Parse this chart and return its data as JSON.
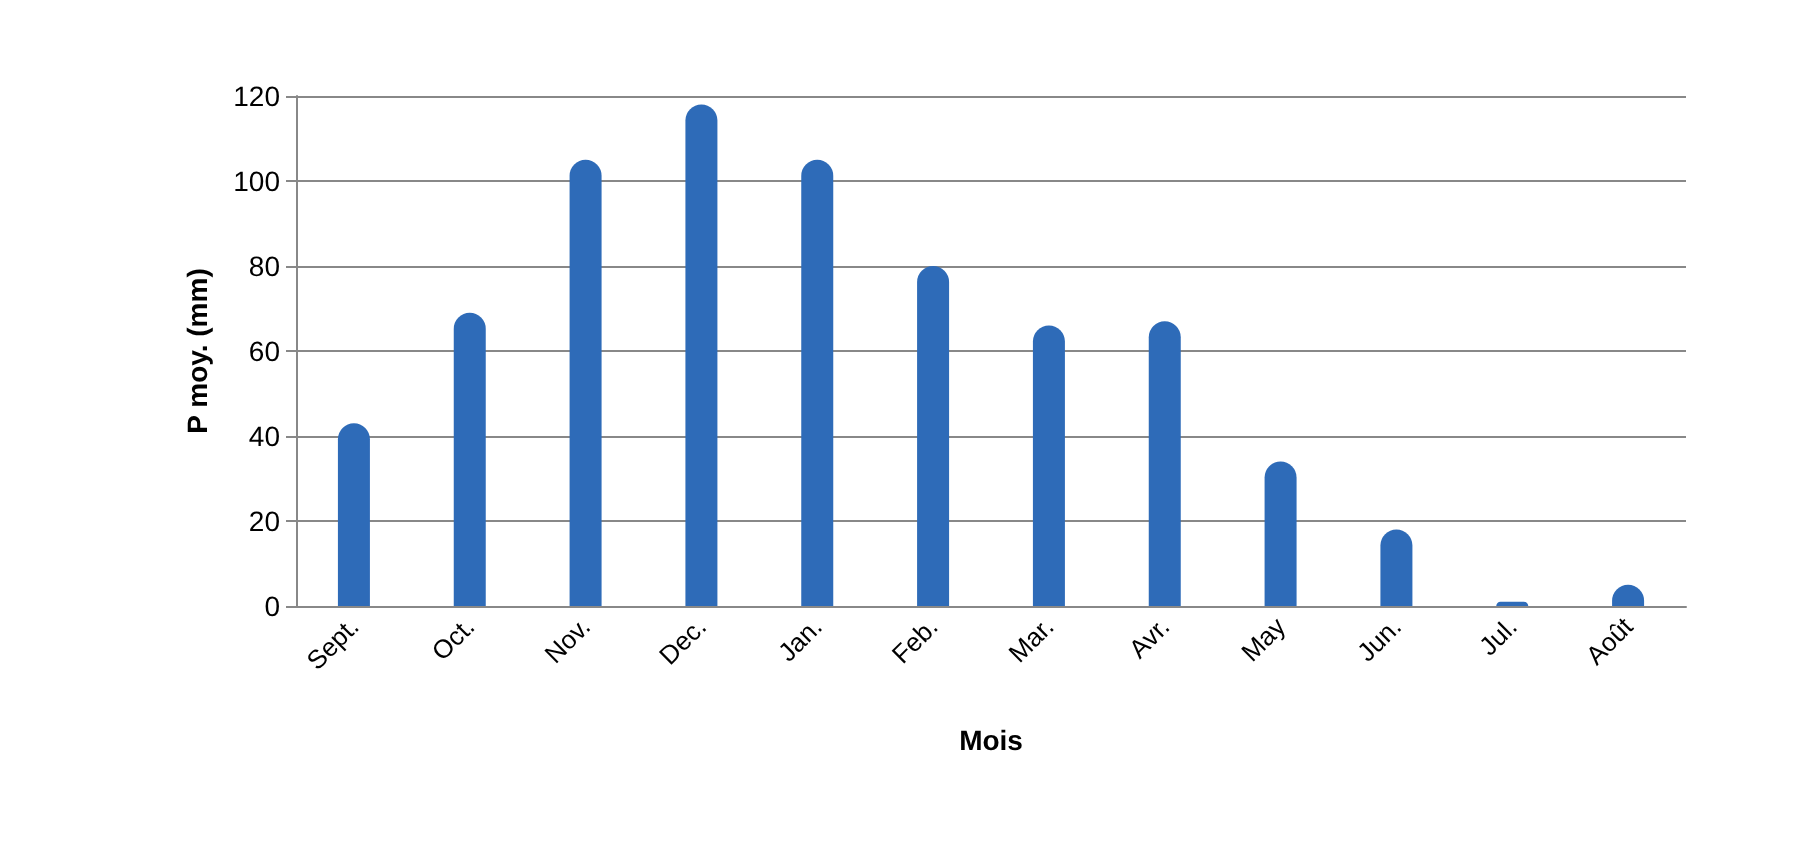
{
  "chart_data": {
    "type": "bar",
    "xlabel": "Mois",
    "ylabel": "P moy. (mm)",
    "categories": [
      "Sept.",
      "Oct.",
      "Nov.",
      "Dec.",
      "Jan.",
      "Feb.",
      "Mar.",
      "Avr.",
      "May",
      "Jun.",
      "Jul.",
      "Août"
    ],
    "values": [
      43,
      69,
      105,
      118,
      105,
      80,
      66,
      67,
      34,
      18,
      1,
      5
    ],
    "color": "#2e6bb8",
    "ylim": [
      0,
      120
    ],
    "yticks": [
      0,
      20,
      40,
      60,
      80,
      100,
      120
    ],
    "grid": "y"
  }
}
